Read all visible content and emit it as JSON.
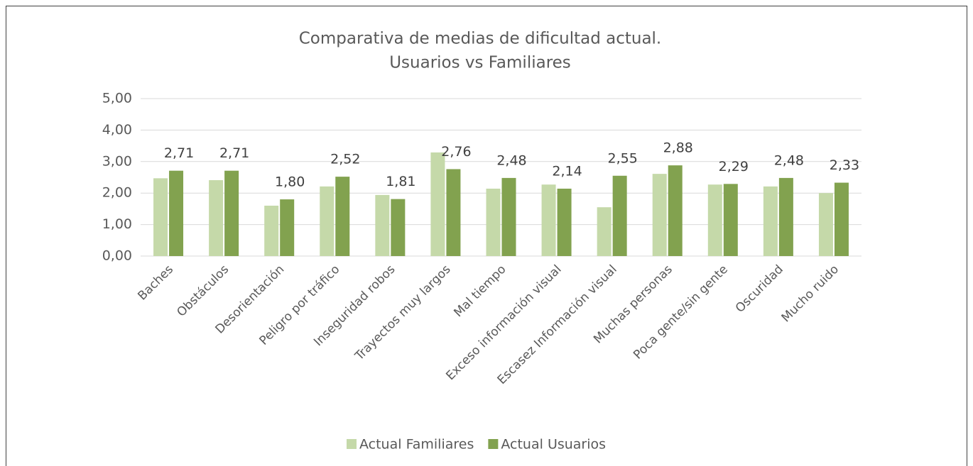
{
  "chart_data": {
    "type": "bar",
    "title": [
      "Comparativa de medias de dificultad actual.",
      "Usuarios vs Familiares"
    ],
    "categories": [
      "Baches",
      "Obstáculos",
      "Desorientación",
      "Peligro por tráfico",
      "Inseguridad robos",
      "Trayectos muy largos",
      "Mal tiempo",
      "Exceso información visual",
      "Escasez Información visual",
      "Muchas personas",
      "Poca gente/sin gente",
      "Oscuridad",
      "Mucho ruido"
    ],
    "series": [
      {
        "name": "Actual Familiares",
        "color": "#c5d9a9",
        "values": [
          2.47,
          2.41,
          1.6,
          2.21,
          1.94,
          3.29,
          2.14,
          2.27,
          1.55,
          2.61,
          2.27,
          2.21,
          2.0
        ]
      },
      {
        "name": "Actual Usuarios",
        "color": "#82a24f",
        "values": [
          2.71,
          2.71,
          1.8,
          2.52,
          1.81,
          2.76,
          2.48,
          2.14,
          2.55,
          2.88,
          2.29,
          2.48,
          2.33
        ],
        "value_labels": [
          "2,71",
          "2,71",
          "1,80",
          "2,52",
          "1,81",
          "2,76",
          "2,48",
          "2,14",
          "2,55",
          "2,88",
          "2,29",
          "2,48",
          "2,33"
        ]
      }
    ],
    "ylim": [
      0,
      5
    ],
    "yticks": [
      {
        "value": 0,
        "label": "0,00"
      },
      {
        "value": 1,
        "label": "1,00"
      },
      {
        "value": 2,
        "label": "2,00"
      },
      {
        "value": 3,
        "label": "3,00"
      },
      {
        "value": 4,
        "label": "4,00"
      },
      {
        "value": 5,
        "label": "5,00"
      }
    ],
    "grid": true,
    "legend": "bottom"
  }
}
